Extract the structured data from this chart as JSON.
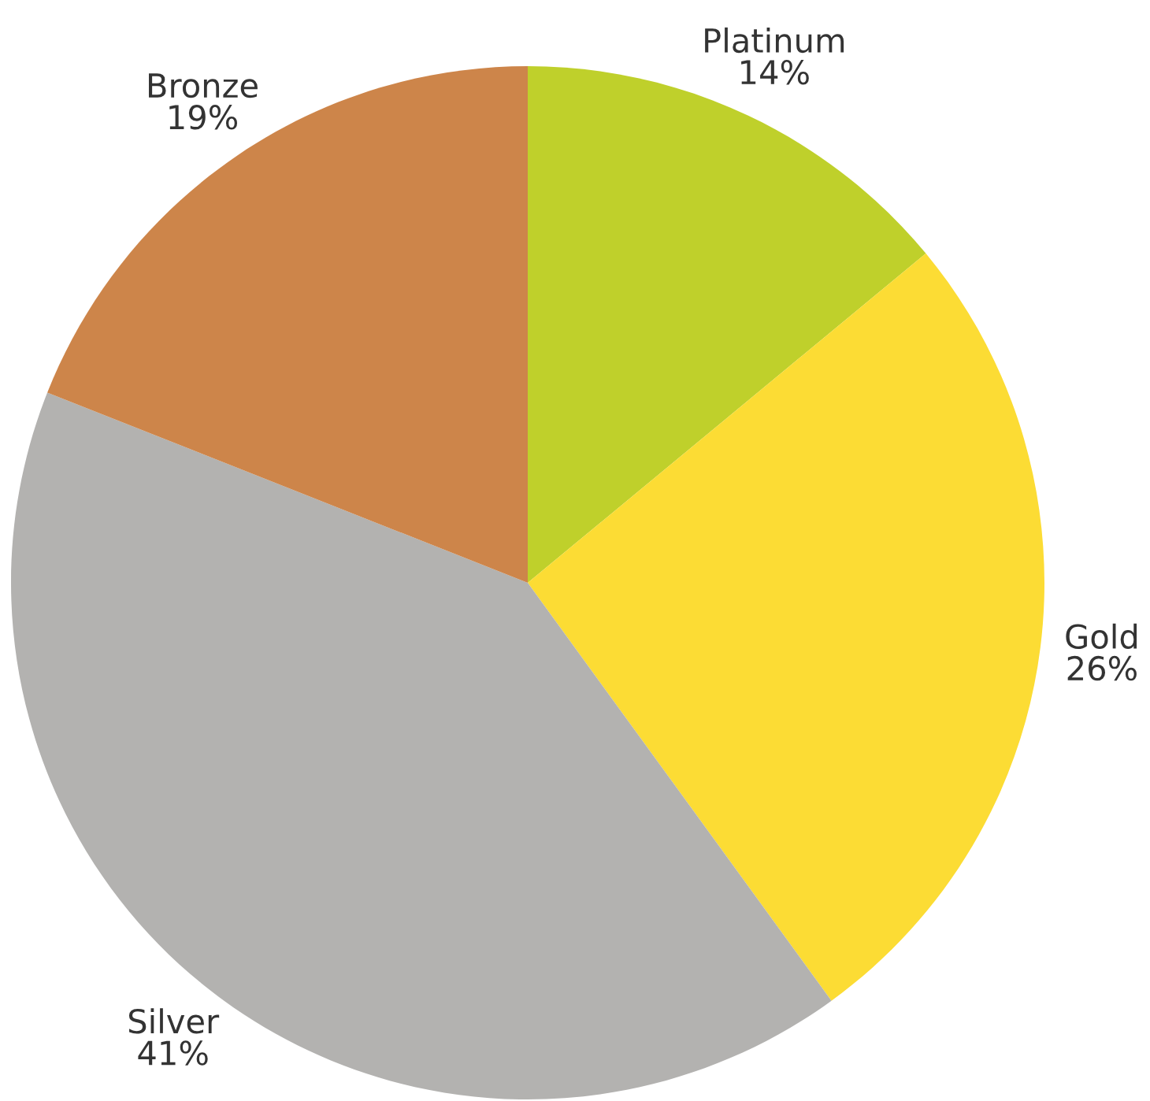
{
  "chart_data": {
    "type": "pie",
    "categories": [
      "Platinum",
      "Gold",
      "Silver",
      "Bronze"
    ],
    "values": [
      14,
      26,
      41,
      19
    ],
    "colors": [
      "#bfd02b",
      "#fcdc34",
      "#b3b2b0",
      "#cd854a"
    ],
    "value_labels": [
      "14%",
      "26%",
      "41%",
      "19%"
    ]
  }
}
